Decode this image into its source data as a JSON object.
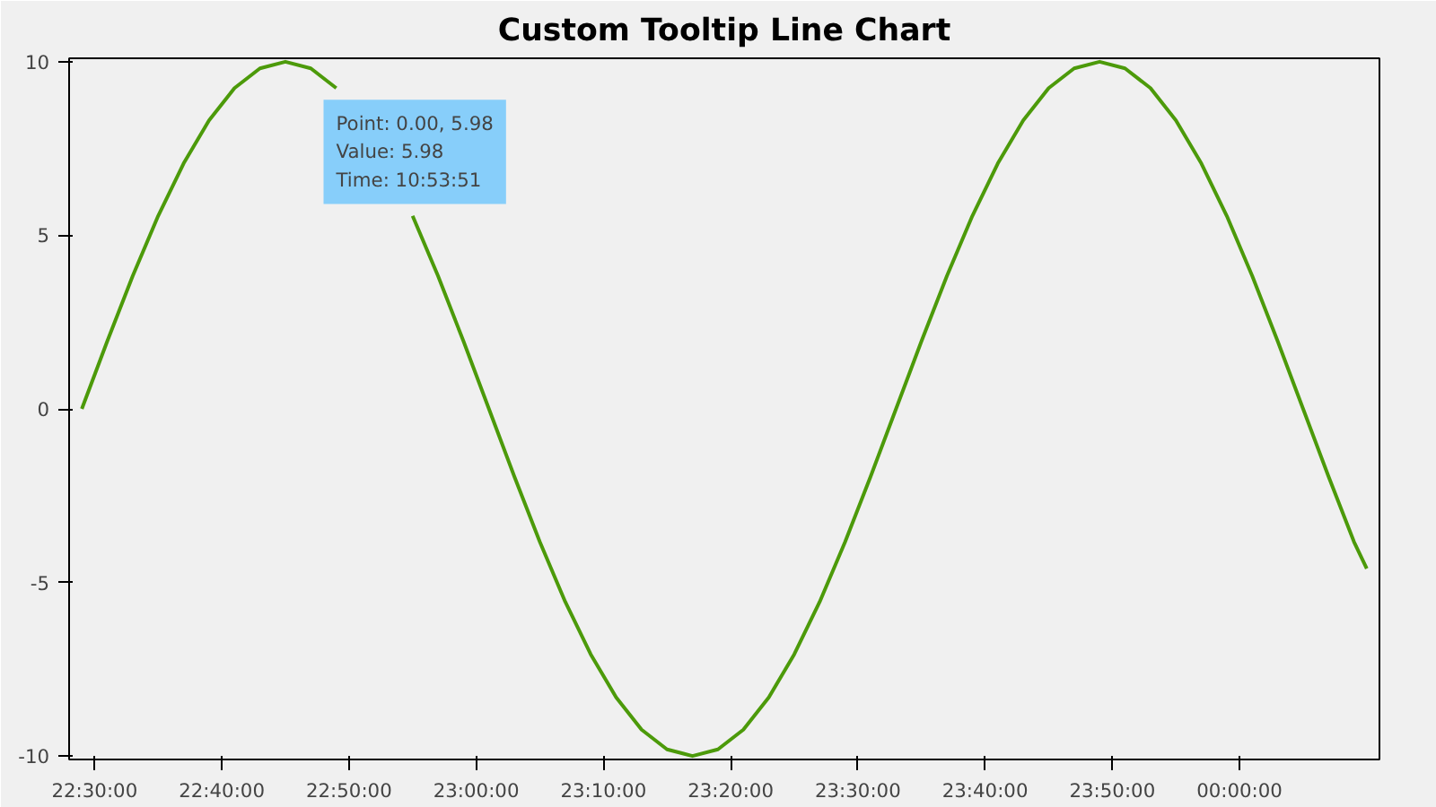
{
  "chart_data": {
    "type": "line",
    "title": "Custom Tooltip Line Chart",
    "annotations": [
      "Point: 0.00, 5.98\nValue: 5.98\nTime: 10:53:51"
    ],
    "x": [
      "2000-01-01T22:29",
      "2000-01-01T22:31",
      "2000-01-01T22:33",
      "2000-01-01T22:35",
      "2000-01-01T22:37",
      "2000-01-01T22:39",
      "2000-01-01T22:41",
      "2000-01-01T22:43",
      "2000-01-01T22:45",
      "2000-01-01T22:47",
      "2000-01-01T22:49",
      "2000-01-01T22:51",
      "2000-01-01T22:53",
      "2000-01-01T22:55",
      "2000-01-01T22:57",
      "2000-01-01T22:59",
      "2000-01-01T23:01",
      "2000-01-01T23:03",
      "2000-01-01T23:05",
      "2000-01-01T23:07",
      "2000-01-01T23:09",
      "2000-01-01T23:11",
      "2000-01-01T23:13",
      "2000-01-01T23:15",
      "2000-01-01T23:17",
      "2000-01-01T23:19",
      "2000-01-01T23:21",
      "2000-01-01T23:23",
      "2000-01-01T23:25",
      "2000-01-01T23:27",
      "2000-01-01T23:29",
      "2000-01-01T23:31",
      "2000-01-01T23:33",
      "2000-01-01T23:35",
      "2000-01-01T23:37",
      "2000-01-01T23:39",
      "2000-01-01T23:41",
      "2000-01-01T23:43",
      "2000-01-01T23:45",
      "2000-01-01T23:47",
      "2000-01-01T23:49",
      "2000-01-01T23:51",
      "2000-01-01T23:53",
      "2000-01-01T23:55",
      "2000-01-01T23:57",
      "2000-01-01T23:59",
      "2000-01-02T00:01",
      "2000-01-02T00:03",
      "2000-01-02T00:05",
      "2000-01-02T00:07",
      "2000-01-02T00:09",
      "2000-01-02T00:10"
    ],
    "series": [
      {
        "color": "#4c9a0a",
        "values": [
          0,
          1.95,
          3.83,
          5.56,
          7.07,
          8.31,
          9.24,
          9.81,
          10,
          9.81,
          9.24,
          null,
          null,
          5.56,
          3.83,
          1.95,
          0,
          -1.95,
          -3.83,
          -5.56,
          -7.07,
          -8.31,
          -9.24,
          -9.81,
          -10,
          -9.81,
          -9.24,
          -8.31,
          -7.07,
          -5.56,
          -3.83,
          -1.95,
          0,
          1.95,
          3.83,
          5.56,
          7.07,
          8.31,
          9.24,
          9.81,
          10,
          9.81,
          9.24,
          8.31,
          7.07,
          5.56,
          3.83,
          1.95,
          0,
          -1.95,
          -3.83,
          -4.6
        ]
      }
    ],
    "xlim": [
      "2000-01-01T22:28",
      "2000-01-02T00:11"
    ],
    "ylim": [
      -10.1,
      10.1
    ],
    "xticks": [
      {
        "value": "2000-01-01T22:30",
        "label": "22:30:00"
      },
      {
        "value": "2000-01-01T22:40",
        "label": "22:40:00"
      },
      {
        "value": "2000-01-01T22:50",
        "label": "22:50:00"
      },
      {
        "value": "2000-01-01T23:00",
        "label": "23:00:00"
      },
      {
        "value": "2000-01-01T23:10",
        "label": "23:10:00"
      },
      {
        "value": "2000-01-01T23:20",
        "label": "23:20:00"
      },
      {
        "value": "2000-01-01T23:30",
        "label": "23:30:00"
      },
      {
        "value": "2000-01-01T23:40",
        "label": "23:40:00"
      },
      {
        "value": "2000-01-01T23:50",
        "label": "23:50:00"
      },
      {
        "value": "2000-01-02T00:00",
        "label": "00:00:00"
      }
    ],
    "yticks": [
      -10,
      -5,
      0,
      5,
      10
    ],
    "grid": false,
    "line_style": "solid"
  }
}
